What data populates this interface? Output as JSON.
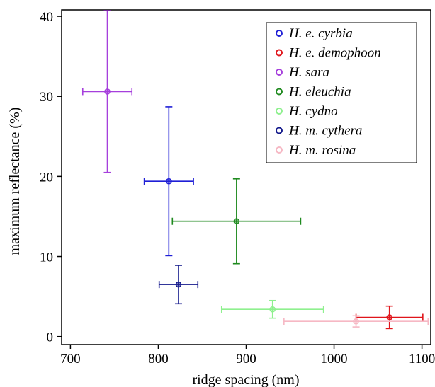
{
  "chart_data": {
    "type": "scatter",
    "title": "",
    "xlabel": "ridge spacing (nm)",
    "ylabel": "maximum reflectance (%)",
    "xlim": [
      690,
      1110
    ],
    "ylim": [
      -1,
      40.8
    ],
    "xticks": [
      700,
      800,
      900,
      1000,
      1100
    ],
    "yticks": [
      0,
      10,
      20,
      30,
      40
    ],
    "grid": false,
    "legend_position": "top-right",
    "series": [
      {
        "name": "H. e. cyrbia",
        "color": "#1f1fd6",
        "x": 812,
        "y": 19.4,
        "xerr": 28,
        "yerr": 9.3
      },
      {
        "name": "H. e. demophoon",
        "color": "#e0151b",
        "x": 1063,
        "y": 2.4,
        "xerr": 38,
        "yerr": 1.4
      },
      {
        "name": "H. sara",
        "color": "#a63fdc",
        "x": 742,
        "y": 30.6,
        "xerr": 28,
        "yerr": 10.1
      },
      {
        "name": "H. eleuchia",
        "color": "#1f8a1f",
        "x": 889,
        "y": 14.4,
        "xerr": 73,
        "yerr": 5.3
      },
      {
        "name": "H. cydno",
        "color": "#8ff08f",
        "x": 930,
        "y": 3.4,
        "xerr": 58,
        "yerr": 1.1
      },
      {
        "name": "H. m. cythera",
        "color": "#141a8c",
        "x": 823,
        "y": 6.5,
        "xerr": 22,
        "yerr": 2.4
      },
      {
        "name": "H. m. rosina",
        "color": "#f6b8c4",
        "x": 1025,
        "y": 1.9,
        "xerr": 82,
        "yerr": 0.7
      }
    ]
  }
}
